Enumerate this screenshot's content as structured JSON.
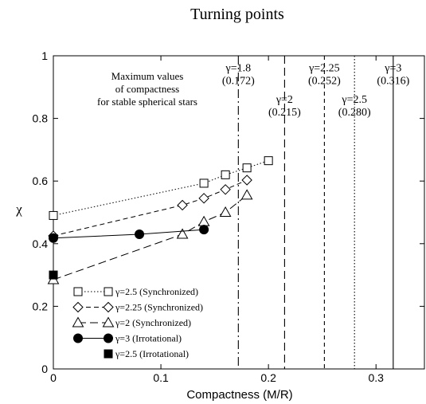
{
  "chart_data": {
    "type": "line",
    "title": "Turning points",
    "xlabel": "Compactness (M/R)",
    "ylabel": "χ",
    "xlim": [
      0,
      0.345
    ],
    "ylim": [
      0,
      1
    ],
    "xticks": [
      0,
      0.1,
      0.2,
      0.3
    ],
    "xtick_labels": [
      "0",
      "0.1",
      "0.2",
      "0.3"
    ],
    "yticks": [
      0,
      0.2,
      0.4,
      0.6,
      0.8,
      1
    ],
    "ytick_labels": [
      "0",
      "0.2",
      "0.4",
      "0.6",
      "0.8",
      "1"
    ],
    "grid": false,
    "legend_position": "bottom-left",
    "annotation": [
      "Maximum values",
      "of compactness",
      "for stable spherical stars"
    ],
    "vertical_lines": [
      {
        "x": 0.172,
        "style": "dashdot",
        "label": "γ=1.8",
        "value_label": "(0.172)",
        "label_y": 0.95
      },
      {
        "x": 0.215,
        "style": "longdash",
        "label": "γ=2",
        "value_label": "(0.215)",
        "label_y": 0.85
      },
      {
        "x": 0.252,
        "style": "shortdash",
        "label": "γ=2.25",
        "value_label": "(0.252)",
        "label_y": 0.95
      },
      {
        "x": 0.28,
        "style": "dotted",
        "label": "γ=2.5",
        "value_label": "(0.280)",
        "label_y": 0.85
      },
      {
        "x": 0.316,
        "style": "solid",
        "label": "γ=3",
        "value_label": "(0.316)",
        "label_y": 0.95
      }
    ],
    "series": [
      {
        "name": "γ=2.5 (Synchronized)",
        "marker": "open-square",
        "line": "dotted",
        "x": [
          0,
          0.14,
          0.16,
          0.18,
          0.2
        ],
        "y": [
          0.49,
          0.593,
          0.62,
          0.642,
          0.665
        ]
      },
      {
        "name": "γ=2.25 (Synchronized)",
        "marker": "open-diamond",
        "line": "dashed",
        "x": [
          0,
          0.12,
          0.14,
          0.16,
          0.18
        ],
        "y": [
          0.425,
          0.523,
          0.545,
          0.573,
          0.603
        ]
      },
      {
        "name": "γ=2 (Synchronized)",
        "marker": "open-triangle",
        "line": "longdash",
        "x": [
          0,
          0.12,
          0.14,
          0.16,
          0.18
        ],
        "y": [
          0.285,
          0.43,
          0.47,
          0.5,
          0.555
        ]
      },
      {
        "name": "γ=3 (Irrotational)",
        "marker": "filled-circle",
        "line": "solid",
        "x": [
          0,
          0.08,
          0.14
        ],
        "y": [
          0.418,
          0.43,
          0.445
        ]
      },
      {
        "name": "γ=2.5 (Irrotational)",
        "marker": "filled-square",
        "line": "none",
        "x": [
          0
        ],
        "y": [
          0.3
        ]
      }
    ]
  }
}
